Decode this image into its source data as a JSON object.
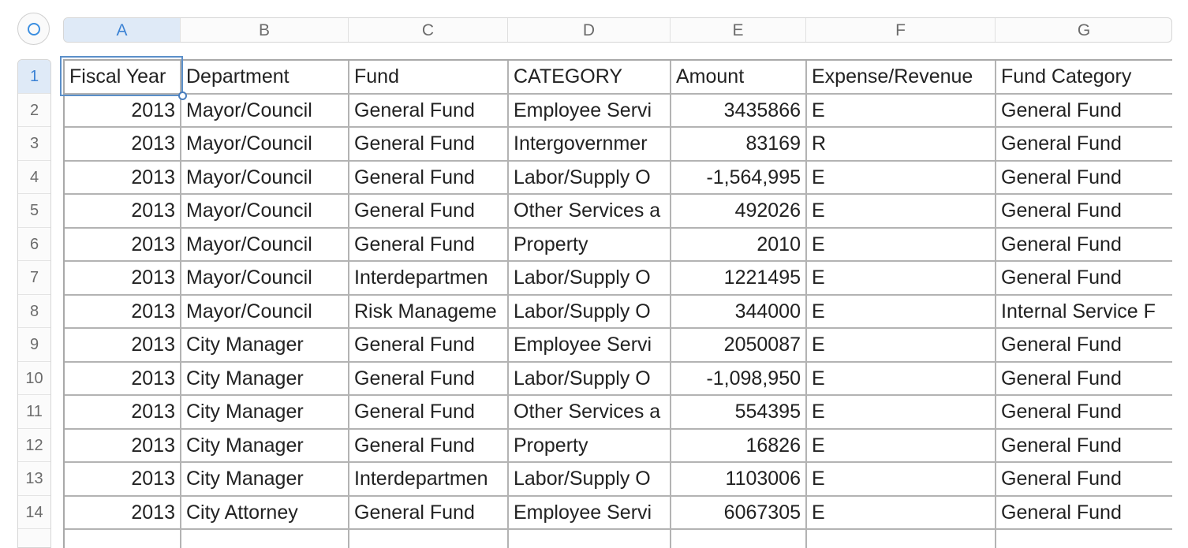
{
  "columns": [
    "A",
    "B",
    "C",
    "D",
    "E",
    "F",
    "G"
  ],
  "rows": [
    "1",
    "2",
    "3",
    "4",
    "5",
    "6",
    "7",
    "8",
    "9",
    "10",
    "11",
    "12",
    "13",
    "14"
  ],
  "header": [
    "Fiscal Year",
    "Department",
    "Fund",
    "CATEGORY",
    "Amount",
    "Expense/Revenue",
    "Fund Category"
  ],
  "data": [
    [
      "2013",
      "Mayor/Council",
      "General Fund",
      "Employee Servi",
      "3435866",
      "E",
      "General Fund"
    ],
    [
      "2013",
      "Mayor/Council",
      "General Fund",
      "Intergovernmer",
      "83169",
      "R",
      "General Fund"
    ],
    [
      "2013",
      "Mayor/Council",
      "General Fund",
      "Labor/Supply O",
      "-1,564,995",
      "E",
      "General Fund"
    ],
    [
      "2013",
      "Mayor/Council",
      "General Fund",
      "Other Services a",
      "492026",
      "E",
      "General Fund"
    ],
    [
      "2013",
      "Mayor/Council",
      "General Fund",
      "Property",
      "2010",
      "E",
      "General Fund"
    ],
    [
      "2013",
      "Mayor/Council",
      "Interdepartmen",
      "Labor/Supply O",
      "1221495",
      "E",
      "General Fund"
    ],
    [
      "2013",
      "Mayor/Council",
      "Risk Manageme",
      "Labor/Supply O",
      "344000",
      "E",
      "Internal Service F"
    ],
    [
      "2013",
      "City Manager",
      "General Fund",
      "Employee Servi",
      "2050087",
      "E",
      "General Fund"
    ],
    [
      "2013",
      "City Manager",
      "General Fund",
      "Labor/Supply O",
      "-1,098,950",
      "E",
      "General Fund"
    ],
    [
      "2013",
      "City Manager",
      "General Fund",
      "Other Services a",
      "554395",
      "E",
      "General Fund"
    ],
    [
      "2013",
      "City Manager",
      "General Fund",
      "Property",
      "16826",
      "E",
      "General Fund"
    ],
    [
      "2013",
      "City Manager",
      "Interdepartmen",
      "Labor/Supply O",
      "1103006",
      "E",
      "General Fund"
    ],
    [
      "2013",
      "City Attorney",
      "General Fund",
      "Employee Servi",
      "6067305",
      "E",
      "General Fund"
    ]
  ],
  "selected_cell": "A1",
  "colors": {
    "accent": "#3b82d4",
    "selection_fill": "#dfeaf7"
  }
}
